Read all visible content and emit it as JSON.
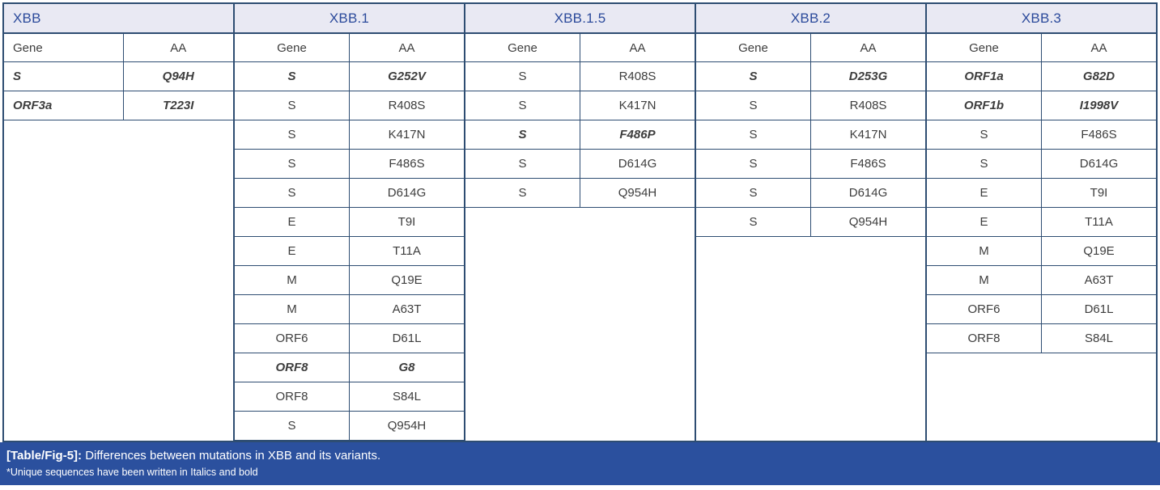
{
  "table": {
    "col_headers": {
      "gene": "Gene",
      "aa": "AA"
    },
    "groups": [
      {
        "label": "XBB",
        "align": "left",
        "rows": [
          {
            "gene": "S",
            "aa": "Q94H",
            "unique": true
          },
          {
            "gene": "ORF3a",
            "aa": "T223I",
            "unique": true
          }
        ]
      },
      {
        "label": "XBB.1",
        "align": "center",
        "rows": [
          {
            "gene": "S",
            "aa": "G252V",
            "unique": true
          },
          {
            "gene": "S",
            "aa": "R408S"
          },
          {
            "gene": "S",
            "aa": "K417N"
          },
          {
            "gene": "S",
            "aa": "F486S"
          },
          {
            "gene": "S",
            "aa": "D614G"
          },
          {
            "gene": "E",
            "aa": "T9I"
          },
          {
            "gene": "E",
            "aa": "T11A"
          },
          {
            "gene": "M",
            "aa": "Q19E"
          },
          {
            "gene": "M",
            "aa": "A63T"
          },
          {
            "gene": "ORF6",
            "aa": "D61L"
          },
          {
            "gene": "ORF8",
            "aa": "G8",
            "unique": true
          },
          {
            "gene": "ORF8",
            "aa": "S84L"
          },
          {
            "gene": "S",
            "aa": "Q954H"
          }
        ]
      },
      {
        "label": "XBB.1.5",
        "align": "center",
        "rows": [
          {
            "gene": "S",
            "aa": "R408S"
          },
          {
            "gene": "S",
            "aa": "K417N"
          },
          {
            "gene": "S",
            "aa": "F486P",
            "unique": true
          },
          {
            "gene": "S",
            "aa": "D614G"
          },
          {
            "gene": "S",
            "aa": "Q954H"
          }
        ]
      },
      {
        "label": "XBB.2",
        "align": "center",
        "rows": [
          {
            "gene": "S",
            "aa": "D253G",
            "unique": true
          },
          {
            "gene": "S",
            "aa": "R408S"
          },
          {
            "gene": "S",
            "aa": "K417N"
          },
          {
            "gene": "S",
            "aa": "F486S"
          },
          {
            "gene": "S",
            "aa": "D614G"
          },
          {
            "gene": "S",
            "aa": "Q954H"
          }
        ]
      },
      {
        "label": "XBB.3",
        "align": "center",
        "rows": [
          {
            "gene": "ORF1a",
            "aa": "G82D",
            "unique": true
          },
          {
            "gene": "ORF1b",
            "aa": "I1998V",
            "unique": true
          },
          {
            "gene": "S",
            "aa": "F486S"
          },
          {
            "gene": "S",
            "aa": "D614G"
          },
          {
            "gene": "E",
            "aa": "T9I"
          },
          {
            "gene": "E",
            "aa": "T11A"
          },
          {
            "gene": "M",
            "aa": "Q19E"
          },
          {
            "gene": "M",
            "aa": "A63T"
          },
          {
            "gene": "ORF6",
            "aa": "D61L"
          },
          {
            "gene": "ORF8",
            "aa": "S84L"
          }
        ]
      }
    ]
  },
  "caption": {
    "label": "[Table/Fig-5]:",
    "text": "Differences between mutations in XBB and its variants.",
    "note": "*Unique sequences have been written in Italics and bold"
  },
  "colors": {
    "border": "#2e4d72",
    "header_bg": "#e9e9f3",
    "header_text": "#2b4a9b",
    "caption_bg": "#2b509e",
    "text": "#3d3d3d"
  }
}
